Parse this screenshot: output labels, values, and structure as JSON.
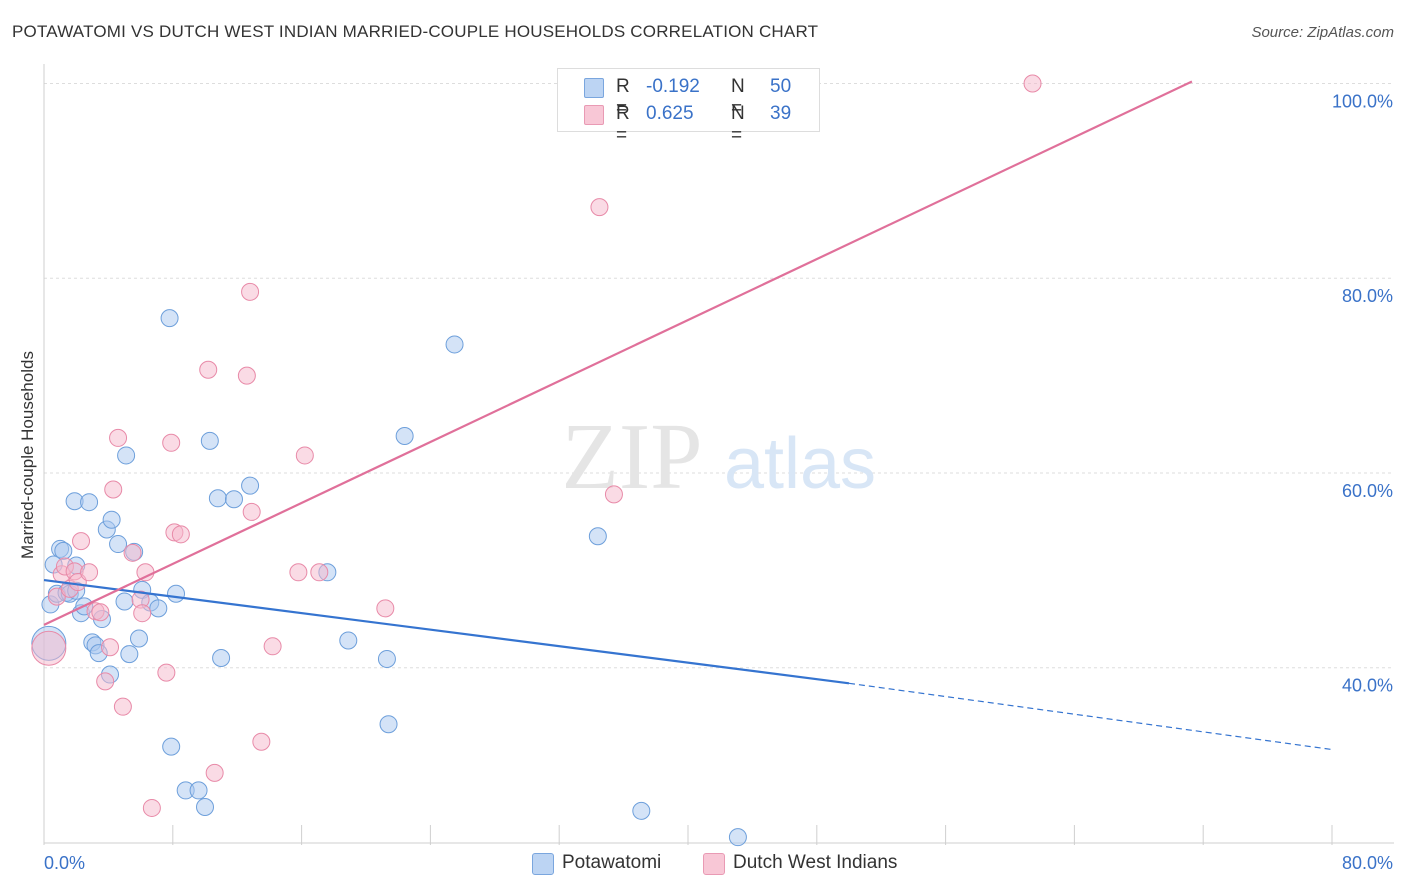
{
  "title": "POTAWATOMI VS DUTCH WEST INDIAN MARRIED-COUPLE HOUSEHOLDS CORRELATION CHART",
  "source": "Source: ZipAtlas.com",
  "watermark": {
    "zip": "ZIP",
    "atlas": "atlas"
  },
  "legend": {
    "rows": [
      {
        "r_label": "R =",
        "r_value": "-0.192",
        "n_label": "N =",
        "n_value": "50"
      },
      {
        "r_label": "R =",
        "r_value": "0.625",
        "n_label": "N =",
        "n_value": "39"
      }
    ]
  },
  "colors": {
    "blue_fill": "#a9c8f0",
    "blue_stroke": "#6d9fdb",
    "blue_line": "#3574d0",
    "pink_fill": "#f5b8cb",
    "pink_stroke": "#e88aa8",
    "pink_line": "#e0709a",
    "tick_text": "#3a72c8",
    "grid": "#dddddd"
  },
  "chart_data": {
    "type": "scatter",
    "title": "POTAWATOMI VS DUTCH WEST INDIAN MARRIED-COUPLE HOUSEHOLDS CORRELATION CHART",
    "xlabel": "",
    "ylabel": "Married-couple Households",
    "xlim": [
      0,
      80
    ],
    "ylim": [
      22,
      102
    ],
    "x_tick_labels": [
      "0.0%",
      "80.0%"
    ],
    "y_ticks": [
      40,
      60,
      80,
      100
    ],
    "y_tick_labels": [
      "40.0%",
      "60.0%",
      "80.0%",
      "100.0%"
    ],
    "series": [
      {
        "name": "Potawatomi",
        "color": "blue",
        "r": -0.192,
        "n": 50,
        "trend": {
          "x0": 0,
          "y0": 49.0,
          "x1": 50,
          "y1": 38.4,
          "dash_to_x": 80,
          "dash_to_y": 31.6
        },
        "points": [
          [
            0.3,
            42.5,
            3
          ],
          [
            0.4,
            46.5,
            1
          ],
          [
            0.6,
            50.6,
            1
          ],
          [
            0.8,
            47.6,
            1
          ],
          [
            1.0,
            52.2,
            1
          ],
          [
            1.2,
            52.0,
            1
          ],
          [
            1.4,
            47.7,
            1
          ],
          [
            1.6,
            47.6,
            1
          ],
          [
            1.9,
            57.1,
            1
          ],
          [
            2.0,
            50.5,
            1
          ],
          [
            2.3,
            45.6,
            1
          ],
          [
            2.5,
            46.3,
            1
          ],
          [
            2.8,
            57.0,
            1
          ],
          [
            3.0,
            42.6,
            1
          ],
          [
            3.2,
            42.3,
            1
          ],
          [
            3.4,
            41.5,
            1
          ],
          [
            3.6,
            45.0,
            1
          ],
          [
            3.9,
            54.2,
            1
          ],
          [
            4.1,
            39.3,
            1
          ],
          [
            4.2,
            55.2,
            1
          ],
          [
            4.6,
            52.7,
            1
          ],
          [
            5.1,
            61.8,
            1
          ],
          [
            5.3,
            41.4,
            1
          ],
          [
            5.6,
            51.9,
            1
          ],
          [
            5.9,
            43.0,
            1
          ],
          [
            6.1,
            48.0,
            1
          ],
          [
            6.6,
            46.7,
            1
          ],
          [
            7.1,
            46.1,
            1
          ],
          [
            7.8,
            75.9,
            1
          ],
          [
            7.9,
            31.9,
            1
          ],
          [
            8.2,
            47.6,
            1
          ],
          [
            8.8,
            27.4,
            1
          ],
          [
            9.6,
            27.4,
            1
          ],
          [
            10.0,
            25.7,
            1
          ],
          [
            10.3,
            63.3,
            1
          ],
          [
            10.8,
            57.4,
            1
          ],
          [
            11.0,
            41.0,
            1
          ],
          [
            11.8,
            57.3,
            1
          ],
          [
            12.8,
            58.7,
            1
          ],
          [
            17.6,
            49.8,
            1
          ],
          [
            18.9,
            42.8,
            1
          ],
          [
            21.3,
            40.9,
            1
          ],
          [
            21.4,
            34.2,
            1
          ],
          [
            22.4,
            63.8,
            1
          ],
          [
            25.5,
            73.2,
            1
          ],
          [
            34.4,
            53.5,
            1
          ],
          [
            37.1,
            25.3,
            1
          ],
          [
            43.1,
            22.6,
            1
          ],
          [
            2.0,
            47.9,
            1
          ],
          [
            5.0,
            46.8,
            1
          ]
        ]
      },
      {
        "name": "Dutch West Indians",
        "color": "pink",
        "r": 0.625,
        "n": 39,
        "trend": {
          "x0": 0,
          "y0": 44.4,
          "x1": 71.3,
          "y1": 100.2
        },
        "points": [
          [
            0.3,
            42.0,
            3
          ],
          [
            0.8,
            47.3,
            1
          ],
          [
            1.1,
            49.6,
            1
          ],
          [
            1.3,
            50.4,
            1
          ],
          [
            1.6,
            48.1,
            1
          ],
          [
            1.9,
            49.9,
            1
          ],
          [
            2.1,
            48.8,
            1
          ],
          [
            2.3,
            53.0,
            1
          ],
          [
            2.8,
            49.8,
            1
          ],
          [
            3.2,
            45.8,
            1
          ],
          [
            3.5,
            45.7,
            1
          ],
          [
            3.8,
            38.6,
            1
          ],
          [
            4.1,
            42.1,
            1
          ],
          [
            4.3,
            58.3,
            1
          ],
          [
            4.6,
            63.6,
            1
          ],
          [
            4.9,
            36.0,
            1
          ],
          [
            5.5,
            51.8,
            1
          ],
          [
            6.0,
            47.0,
            1
          ],
          [
            6.1,
            45.6,
            1
          ],
          [
            6.3,
            49.8,
            1
          ],
          [
            6.7,
            25.6,
            1
          ],
          [
            7.6,
            39.5,
            1
          ],
          [
            7.9,
            63.1,
            1
          ],
          [
            8.1,
            53.9,
            1
          ],
          [
            8.5,
            53.7,
            1
          ],
          [
            10.2,
            70.6,
            1
          ],
          [
            10.6,
            29.2,
            1
          ],
          [
            12.6,
            70.0,
            1
          ],
          [
            12.8,
            78.6,
            1
          ],
          [
            12.9,
            56.0,
            1
          ],
          [
            13.5,
            32.4,
            1
          ],
          [
            14.2,
            42.2,
            1
          ],
          [
            15.8,
            49.8,
            1
          ],
          [
            16.2,
            61.8,
            1
          ],
          [
            17.1,
            49.8,
            1
          ],
          [
            21.2,
            46.1,
            1
          ],
          [
            34.5,
            87.3,
            1
          ],
          [
            35.4,
            57.8,
            1
          ],
          [
            61.4,
            100.0,
            1
          ]
        ]
      }
    ]
  },
  "bottom_legend": [
    "Potawatomi",
    "Dutch West Indians"
  ]
}
